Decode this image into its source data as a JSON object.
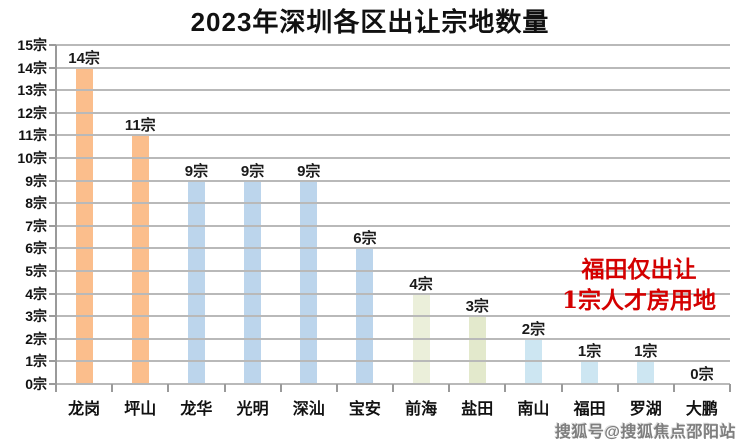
{
  "title": "2023年深圳各区出让宗地数量",
  "chart_data": {
    "type": "bar",
    "title": "2023年深圳各区出让宗地数量",
    "categories": [
      "龙岗",
      "坪山",
      "龙华",
      "光明",
      "深汕",
      "宝安",
      "前海",
      "盐田",
      "南山",
      "福田",
      "罗湖",
      "大鹏"
    ],
    "category_slugs": [
      "longgang",
      "pingshan",
      "longhua",
      "guangming",
      "shenshan",
      "baoan",
      "qianhai",
      "yantian",
      "nanshan",
      "futian",
      "luohu",
      "dapeng"
    ],
    "values": [
      14,
      11,
      9,
      9,
      9,
      6,
      4,
      3,
      2,
      1,
      1,
      0
    ],
    "bar_labels": [
      "14宗",
      "11宗",
      "9宗",
      "9宗",
      "9宗",
      "6宗",
      "4宗",
      "3宗",
      "2宗",
      "1宗",
      "1宗",
      "0宗"
    ],
    "bar_colors": [
      "#fbbe8c",
      "#fbbe8c",
      "#bcd5ec",
      "#bcd5ec",
      "#bcd5ec",
      "#bcd5ec",
      "#ebefda",
      "#e3e9cc",
      "#cde6f2",
      "#cde6f2",
      "#cde6f2",
      "#cde6f2"
    ],
    "xlabel": "",
    "ylabel": "",
    "ylim": [
      0,
      15
    ],
    "ytick_step": 1,
    "ytick_suffix": "宗",
    "ytick_labels": [
      "0宗",
      "1宗",
      "2宗",
      "3宗",
      "4宗",
      "5宗",
      "6宗",
      "7宗",
      "8宗",
      "9宗",
      "10宗",
      "11宗",
      "12宗",
      "13宗",
      "14宗",
      "15宗"
    ],
    "grid": true,
    "grid_on_top_of_bars": true,
    "legend": false
  },
  "annotation": {
    "line1": "福田仅出让",
    "line2": "1宗人才房用地",
    "color": "#d40000"
  },
  "watermark": "搜狐号@搜狐焦点邵阳站",
  "colors": {
    "background": "#ffffff",
    "gridline": "#b9b9b9",
    "axis": "#9a9a9a",
    "text": "#111111",
    "orange_bar": "#fbbe8c",
    "blue_bar": "#bcd5ec",
    "green_bar": "#e3e9cc",
    "cyan_bar": "#cde6f2",
    "annotation_red": "#d40000"
  }
}
